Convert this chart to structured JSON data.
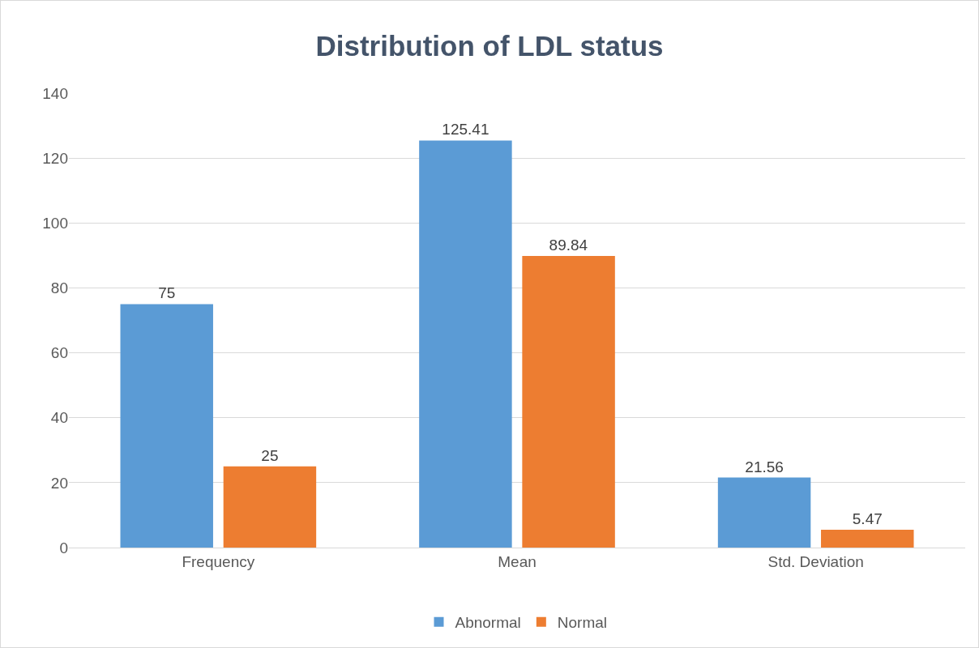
{
  "chart_data": {
    "type": "bar",
    "title": "Distribution of LDL status",
    "categories": [
      "Frequency",
      "Mean",
      "Std. Deviation"
    ],
    "series": [
      {
        "name": "Abnormal",
        "color": "#5b9bd5",
        "values": [
          75,
          125.41,
          21.56
        ]
      },
      {
        "name": "Normal",
        "color": "#ed7d31",
        "values": [
          25,
          89.84,
          5.47
        ]
      }
    ],
    "ylim": [
      0,
      140
    ],
    "yticks": [
      0,
      20,
      40,
      60,
      80,
      100,
      120,
      140
    ],
    "grid": "y",
    "legend": "bottom",
    "data_labels": true
  }
}
